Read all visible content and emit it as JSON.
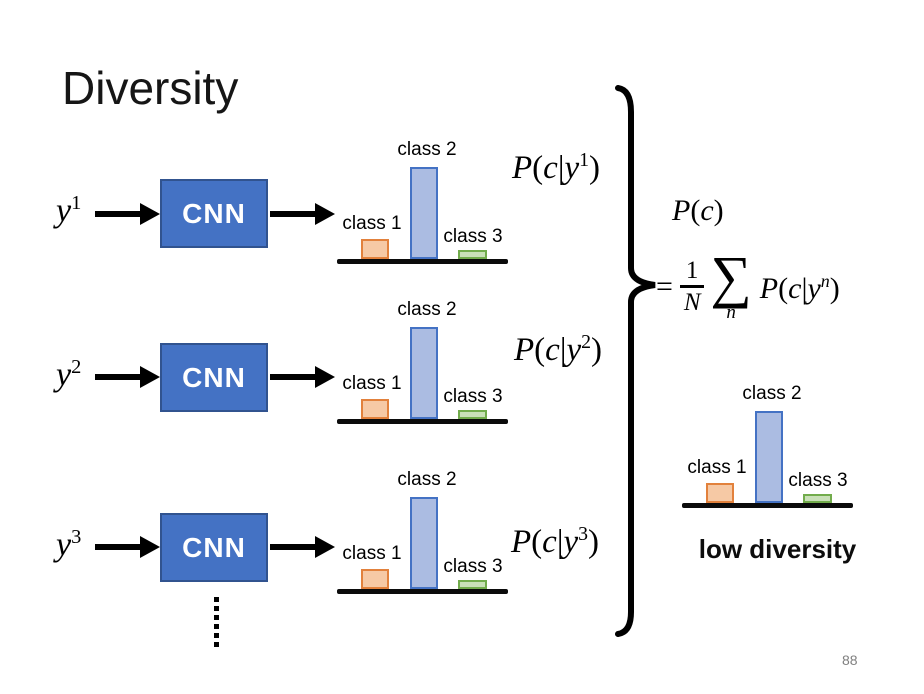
{
  "slide": {
    "title": "Diversity",
    "page_number": "88"
  },
  "labels": {
    "cnn": "CNN",
    "low_diversity": "low diversity"
  },
  "math": {
    "P": "P",
    "c": "c",
    "y": "y",
    "N": "N",
    "n": "n",
    "one": "1",
    "eq": "=",
    "sum": "∑",
    "lparen": "(",
    "rparen": ")",
    "vbar": "|"
  },
  "rows": [
    {
      "sup": "1"
    },
    {
      "sup": "2"
    },
    {
      "sup": "3"
    }
  ],
  "chart_data": {
    "type": "bar",
    "categories": [
      "class 1",
      "class 2",
      "class 3"
    ],
    "values": [
      0.21,
      0.96,
      0.09
    ],
    "title": "",
    "xlabel": "",
    "ylabel": ""
  },
  "colors": {
    "cnn_box_fill": "#4472C4",
    "cnn_box_border": "#31538F",
    "bar1_fill": "#F6C9A5",
    "bar1_border": "#E2813C",
    "bar2_fill": "#ABBCE2",
    "bar2_border": "#4472C4",
    "bar3_fill": "#C9E0B8",
    "bar3_border": "#72AC4C"
  }
}
